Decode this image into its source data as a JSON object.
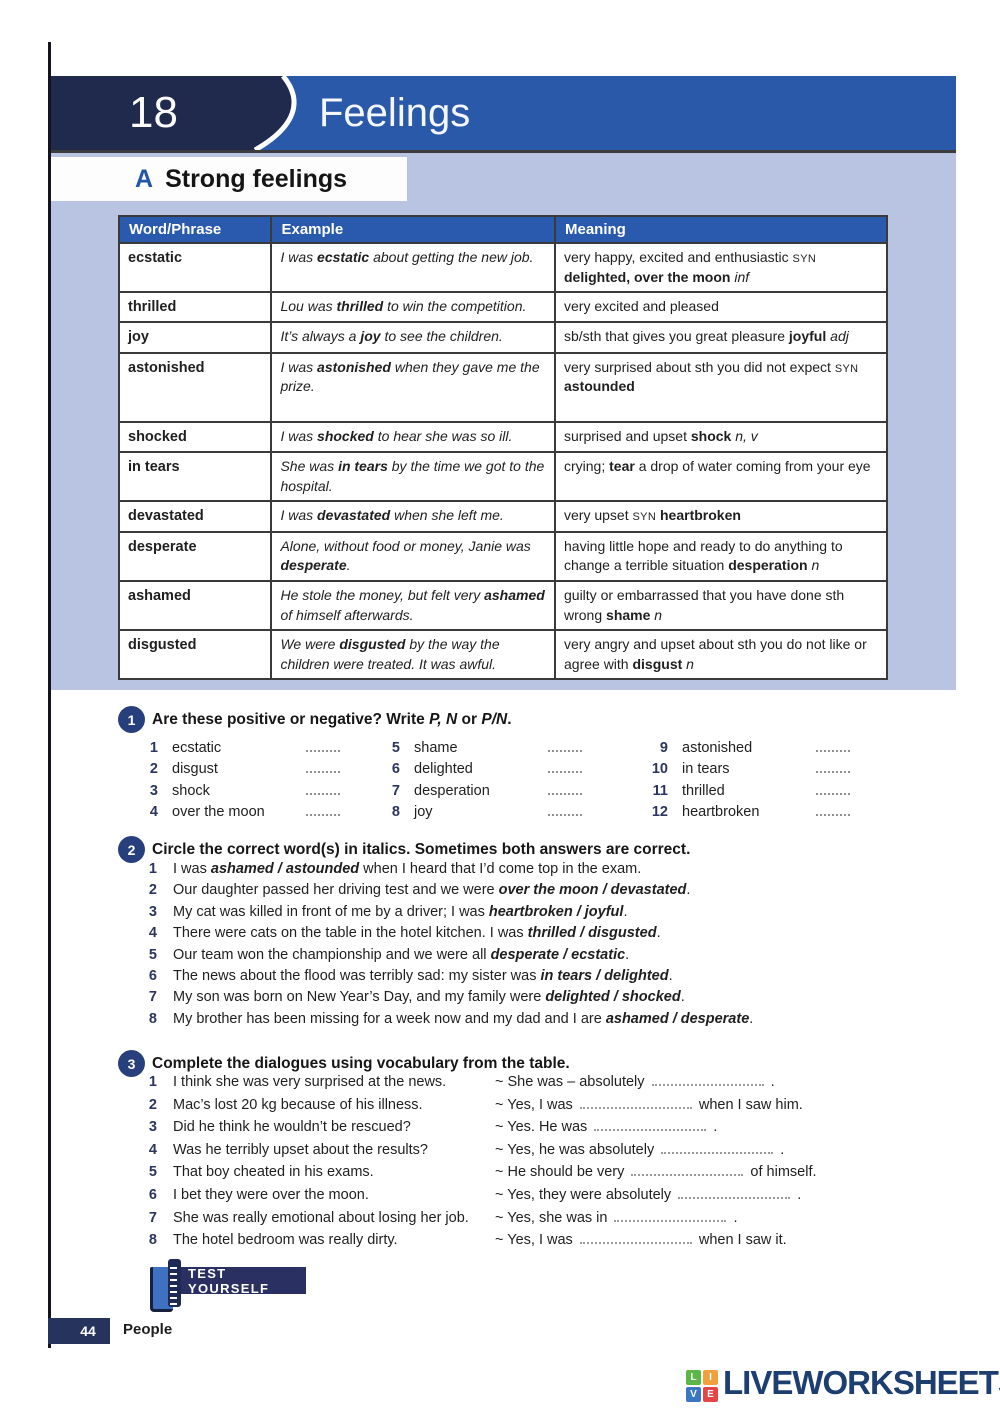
{
  "colors": {
    "banner_blue": "#2b59a9",
    "dark_navy": "#1f2a4d",
    "light_blue_bg": "#b8c4e2",
    "table_header_blue": "#2a5aad",
    "exercise_circle_navy": "#27407d",
    "logo_navy": "#1c3e70"
  },
  "page": {
    "unit_number": "18",
    "unit_title": "Feelings",
    "section_letter": "A",
    "section_title": "Strong feelings",
    "test_yourself": "TEST YOURSELF",
    "page_number": "44",
    "footer_label": "People"
  },
  "table": {
    "headers": [
      "Word/Phrase",
      "Example",
      "Meaning"
    ],
    "rows": [
      {
        "word": "ecstatic",
        "example": [
          [
            "I was ",
            "i"
          ],
          [
            "ecstatic",
            "bi"
          ],
          [
            " about getting the new job.",
            "i"
          ]
        ],
        "meaning": [
          [
            "very happy, excited and enthusiastic ",
            "n"
          ],
          [
            "SYN",
            "sc"
          ],
          [
            " ",
            "n"
          ],
          [
            "delighted, over the moon",
            "b"
          ],
          [
            " ",
            "n"
          ],
          [
            "inf",
            "i"
          ]
        ]
      },
      {
        "word": "thrilled",
        "example": [
          [
            "Lou was ",
            "i"
          ],
          [
            "thrilled",
            "bi"
          ],
          [
            " to win the competition.",
            "i"
          ]
        ],
        "meaning": [
          [
            "very excited and pleased",
            "n"
          ]
        ]
      },
      {
        "word": "joy",
        "example": [
          [
            "It’s always a ",
            "i"
          ],
          [
            "joy",
            "bi"
          ],
          [
            " to see the children.",
            "i"
          ]
        ],
        "meaning": [
          [
            "sb/sth that gives you great pleasure ",
            "n"
          ],
          [
            "joyful",
            "b"
          ],
          [
            " ",
            "n"
          ],
          [
            "adj",
            "i"
          ]
        ]
      },
      {
        "word": "astonished",
        "example": [
          [
            "I was ",
            "i"
          ],
          [
            "astonished",
            "bi"
          ],
          [
            " when they gave me the prize.",
            "i"
          ]
        ],
        "meaning": [
          [
            "very surprised about sth you did not expect ",
            "n"
          ],
          [
            "SYN",
            "sc"
          ],
          [
            " ",
            "n"
          ],
          [
            "astounded",
            "b"
          ]
        ]
      },
      {
        "word": "shocked",
        "example": [
          [
            "I was ",
            "i"
          ],
          [
            "shocked",
            "bi"
          ],
          [
            " to hear she was so ill.",
            "i"
          ]
        ],
        "meaning": [
          [
            "surprised and upset ",
            "n"
          ],
          [
            "shock",
            "b"
          ],
          [
            " ",
            "n"
          ],
          [
            "n, v",
            "i"
          ]
        ]
      },
      {
        "word": "in tears",
        "example": [
          [
            "She was ",
            "i"
          ],
          [
            "in tears",
            "bi"
          ],
          [
            " by the time we got to the hospital.",
            "i"
          ]
        ],
        "meaning": [
          [
            "crying; ",
            "n"
          ],
          [
            "tear",
            "b"
          ],
          [
            " a drop of water coming from your eye",
            "n"
          ]
        ]
      },
      {
        "word": "devastated",
        "example": [
          [
            "I was ",
            "i"
          ],
          [
            "devastated",
            "bi"
          ],
          [
            " when she left me.",
            "i"
          ]
        ],
        "meaning": [
          [
            "very upset ",
            "n"
          ],
          [
            "SYN",
            "sc"
          ],
          [
            " ",
            "n"
          ],
          [
            "heartbroken",
            "b"
          ]
        ]
      },
      {
        "word": "desperate",
        "example": [
          [
            "Alone, without food or money, Janie was ",
            "i"
          ],
          [
            "desperate",
            "bi"
          ],
          [
            ".",
            "i"
          ]
        ],
        "meaning": [
          [
            "having little hope and ready to do anything to change a terrible situation ",
            "n"
          ],
          [
            "desperation",
            "b"
          ],
          [
            " ",
            "n"
          ],
          [
            "n",
            "i"
          ]
        ]
      },
      {
        "word": "ashamed",
        "example": [
          [
            "He stole the money, but felt very ",
            "i"
          ],
          [
            "ashamed",
            "bi"
          ],
          [
            " of himself afterwards.",
            "i"
          ]
        ],
        "meaning": [
          [
            "guilty or embarrassed that you have done sth wrong ",
            "n"
          ],
          [
            "shame",
            "b"
          ],
          [
            " ",
            "n"
          ],
          [
            "n",
            "i"
          ]
        ]
      },
      {
        "word": "disgusted",
        "example": [
          [
            "We were ",
            "i"
          ],
          [
            "disgusted",
            "bi"
          ],
          [
            " by the way the children were treated. It was awful.",
            "i"
          ]
        ],
        "meaning": [
          [
            "very angry and upset about sth you do not like or agree with ",
            "n"
          ],
          [
            "disgust",
            "b"
          ],
          [
            " ",
            "n"
          ],
          [
            "n",
            "i"
          ]
        ]
      }
    ]
  },
  "ex1": {
    "number": "1",
    "title": [
      [
        "Are these positive or negative? Write ",
        "b"
      ],
      [
        "P, N",
        "bi"
      ],
      [
        " or ",
        "b"
      ],
      [
        "P/N",
        "bi"
      ],
      [
        ".",
        "b"
      ]
    ],
    "items": [
      {
        "n": "1",
        "label": "ecstatic"
      },
      {
        "n": "2",
        "label": "disgust"
      },
      {
        "n": "3",
        "label": "shock"
      },
      {
        "n": "4",
        "label": "over the moon"
      },
      {
        "n": "5",
        "label": "shame"
      },
      {
        "n": "6",
        "label": "delighted"
      },
      {
        "n": "7",
        "label": "desperation"
      },
      {
        "n": "8",
        "label": "joy"
      },
      {
        "n": "9",
        "label": "astonished"
      },
      {
        "n": "10",
        "label": "in tears"
      },
      {
        "n": "11",
        "label": "thrilled"
      },
      {
        "n": "12",
        "label": "heartbroken"
      }
    ]
  },
  "ex2": {
    "number": "2",
    "title": "Circle the correct word(s) in italics. Sometimes both answers are correct.",
    "items": [
      {
        "n": "1",
        "text": [
          [
            "I was ",
            "n"
          ],
          [
            "ashamed / astounded",
            "bi"
          ],
          [
            " when I heard that I’d come top in the exam.",
            "n"
          ]
        ]
      },
      {
        "n": "2",
        "text": [
          [
            "Our daughter passed her driving test and we were ",
            "n"
          ],
          [
            "over the moon / devastated",
            "bi"
          ],
          [
            ".",
            "n"
          ]
        ]
      },
      {
        "n": "3",
        "text": [
          [
            "My cat was killed in front of me by a driver; I was ",
            "n"
          ],
          [
            "heartbroken / joyful",
            "bi"
          ],
          [
            ".",
            "n"
          ]
        ]
      },
      {
        "n": "4",
        "text": [
          [
            "There were cats on the table in the hotel kitchen. I was ",
            "n"
          ],
          [
            "thrilled / disgusted",
            "bi"
          ],
          [
            ".",
            "n"
          ]
        ]
      },
      {
        "n": "5",
        "text": [
          [
            "Our team won the championship and we were all ",
            "n"
          ],
          [
            "desperate / ecstatic",
            "bi"
          ],
          [
            ".",
            "n"
          ]
        ]
      },
      {
        "n": "6",
        "text": [
          [
            "The news about the flood was terribly sad: my sister was ",
            "n"
          ],
          [
            "in tears / delighted",
            "bi"
          ],
          [
            ".",
            "n"
          ]
        ]
      },
      {
        "n": "7",
        "text": [
          [
            "My son was born on New Year’s Day, and my family were ",
            "n"
          ],
          [
            "delighted / shocked",
            "bi"
          ],
          [
            ".",
            "n"
          ]
        ]
      },
      {
        "n": "8",
        "text": [
          [
            "My brother has been missing for a week now and my dad and I are ",
            "n"
          ],
          [
            "ashamed / desperate",
            "bi"
          ],
          [
            ".",
            "n"
          ]
        ]
      }
    ]
  },
  "ex3": {
    "number": "3",
    "title": "Complete the dialogues using vocabulary from the table.",
    "items": [
      {
        "n": "1",
        "prompt": "I think she was very surprised at the news.",
        "response": [
          [
            "~ She was – absolutely ",
            "n"
          ],
          [
            "",
            "bl"
          ],
          [
            " .",
            "n"
          ]
        ]
      },
      {
        "n": "2",
        "prompt": "Mac’s lost 20 kg because of his illness.",
        "response": [
          [
            "~ Yes, I was ",
            "n"
          ],
          [
            "",
            "bl"
          ],
          [
            " when I saw him.",
            "n"
          ]
        ]
      },
      {
        "n": "3",
        "prompt": "Did he think he wouldn’t be rescued?",
        "response": [
          [
            "~ Yes. He was ",
            "n"
          ],
          [
            "",
            "bl"
          ],
          [
            " .",
            "n"
          ]
        ]
      },
      {
        "n": "4",
        "prompt": "Was he terribly upset about the results?",
        "response": [
          [
            "~ Yes, he was absolutely ",
            "n"
          ],
          [
            "",
            "bl"
          ],
          [
            " .",
            "n"
          ]
        ]
      },
      {
        "n": "5",
        "prompt": "That boy cheated in his exams.",
        "response": [
          [
            "~ He should be very ",
            "n"
          ],
          [
            "",
            "bl"
          ],
          [
            " of himself.",
            "n"
          ]
        ]
      },
      {
        "n": "6",
        "prompt": "I bet they were over the moon.",
        "response": [
          [
            "~ Yes, they were absolutely ",
            "n"
          ],
          [
            "",
            "bl"
          ],
          [
            " .",
            "n"
          ]
        ]
      },
      {
        "n": "7",
        "prompt": "She was really emotional about losing her job.",
        "response": [
          [
            "~ Yes, she was in ",
            "n"
          ],
          [
            "",
            "bl"
          ],
          [
            " .",
            "n"
          ]
        ]
      },
      {
        "n": "8",
        "prompt": "The hotel bedroom was really dirty.",
        "response": [
          [
            "~ Yes, I was ",
            "n"
          ],
          [
            "",
            "bl"
          ],
          [
            " when I saw it.",
            "n"
          ]
        ]
      }
    ]
  },
  "logo": {
    "text": "LIVEWORKSHEETS",
    "squares": [
      {
        "letter": "L",
        "color": "#5cb648"
      },
      {
        "letter": "I",
        "color": "#f0a03c"
      },
      {
        "letter": "V",
        "color": "#3b76c2"
      },
      {
        "letter": "E",
        "color": "#e64545"
      }
    ]
  }
}
